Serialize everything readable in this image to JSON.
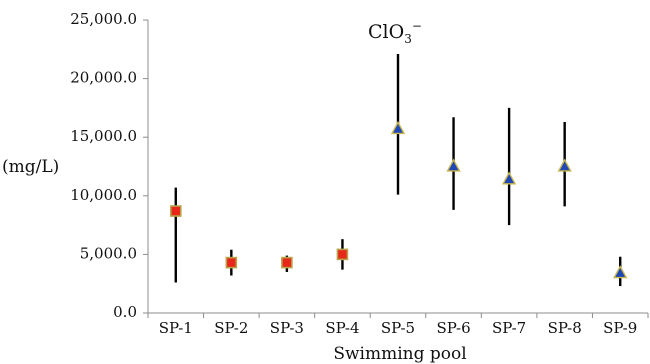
{
  "chart_data": {
    "type": "scatter",
    "title_main": "ClO",
    "title_sub": "3",
    "title_sup": "−",
    "xlabel": "Swimming pool",
    "ylabel": "(mg/L)",
    "ylim": [
      0,
      25000
    ],
    "yticks": [
      0,
      5000,
      10000,
      15000,
      20000,
      25000
    ],
    "ytick_labels": [
      "0.0",
      "5,000.0",
      "10,000.0",
      "15,000.0",
      "20,000.0",
      "25,000.0"
    ],
    "grid": false,
    "legend": "none",
    "categories": [
      "SP-1",
      "SP-2",
      "SP-3",
      "SP-4",
      "SP-5",
      "SP-6",
      "SP-7",
      "SP-8",
      "SP-9"
    ],
    "mean": [
      8700,
      4300,
      4300,
      5000,
      15700,
      12500,
      11400,
      12500,
      3400
    ],
    "min": [
      2600,
      3200,
      3500,
      3700,
      10100,
      8800,
      7500,
      9100,
      2300
    ],
    "max": [
      10700,
      5400,
      4900,
      6300,
      22100,
      16700,
      17500,
      16300,
      4800
    ],
    "marker": [
      "square",
      "square",
      "square",
      "square",
      "triangle",
      "triangle",
      "triangle",
      "triangle",
      "triangle"
    ],
    "colors": {
      "square_fill": "#e8261a",
      "square_stroke": "#b8a24a",
      "triangle_fill": "#1f47b8",
      "triangle_stroke": "#c9b64e",
      "range_line": "#000000",
      "axis": "#8c8c8c"
    }
  }
}
